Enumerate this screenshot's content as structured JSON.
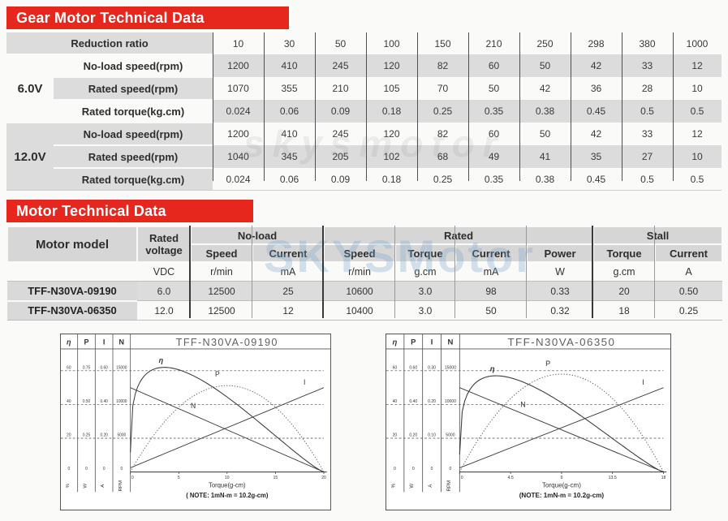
{
  "watermarks": {
    "gear": "skysmotor",
    "motor": "SKYSMotor"
  },
  "gear_table": {
    "title": "Gear Motor Technical Data",
    "header_label": "Reduction ratio",
    "ratios": [
      "10",
      "30",
      "50",
      "100",
      "150",
      "210",
      "250",
      "298",
      "380",
      "1000"
    ],
    "groups": [
      {
        "voltage": "6.0V",
        "rows": [
          {
            "label": "No-load speed(rpm)",
            "values": [
              "1200",
              "410",
              "245",
              "120",
              "82",
              "60",
              "50",
              "42",
              "33",
              "12"
            ]
          },
          {
            "label": "Rated speed(rpm)",
            "values": [
              "1070",
              "355",
              "210",
              "105",
              "70",
              "50",
              "42",
              "36",
              "28",
              "10"
            ]
          },
          {
            "label": "Rated torque(kg.cm)",
            "values": [
              "0.024",
              "0.06",
              "0.09",
              "0.18",
              "0.25",
              "0.35",
              "0.38",
              "0.45",
              "0.5",
              "0.5"
            ]
          }
        ]
      },
      {
        "voltage": "12.0V",
        "rows": [
          {
            "label": "No-load speed(rpm)",
            "values": [
              "1200",
              "410",
              "245",
              "120",
              "82",
              "60",
              "50",
              "42",
              "33",
              "12"
            ]
          },
          {
            "label": "Rated speed(rpm)",
            "values": [
              "1040",
              "345",
              "205",
              "102",
              "68",
              "49",
              "41",
              "35",
              "27",
              "10"
            ]
          },
          {
            "label": "Rated torque(kg.cm)",
            "values": [
              "0.024",
              "0.06",
              "0.09",
              "0.18",
              "0.25",
              "0.35",
              "0.38",
              "0.45",
              "0.5",
              "0.5"
            ]
          }
        ]
      }
    ]
  },
  "motor_table": {
    "title": "Motor Technical Data",
    "model_header": "Motor model",
    "voltage_header": "Rated voltage",
    "groups": [
      {
        "label": "No-load",
        "cols": [
          "Speed",
          "Current"
        ]
      },
      {
        "label": "Rated",
        "cols": [
          "Speed",
          "Torque",
          "Current",
          "Power"
        ]
      },
      {
        "label": "Stall",
        "cols": [
          "Torque",
          "Current"
        ]
      }
    ],
    "units": [
      "VDC",
      "r/min",
      "mA",
      "r/min",
      "g.cm",
      "mA",
      "W",
      "g.cm",
      "A"
    ],
    "rows": [
      {
        "model": "TFF-N30VA-09190",
        "values": [
          "6.0",
          "12500",
          "25",
          "10600",
          "3.0",
          "98",
          "0.33",
          "20",
          "0.50"
        ]
      },
      {
        "model": "TFF-N30VA-06350",
        "values": [
          "12.0",
          "12500",
          "12",
          "10400",
          "3.0",
          "50",
          "0.32",
          "18",
          "0.25"
        ]
      }
    ]
  },
  "chart_data": [
    {
      "type": "line",
      "title": "TFF-N30VA-09190",
      "xlabel": "Torque(g-cm)",
      "note": "( NOTE: 1mN-m = 10.2g-cm)",
      "x_max": 20,
      "x_ticks": [
        "0",
        "5",
        "10",
        "15",
        "20"
      ],
      "axes": [
        {
          "symbol": "η",
          "unit": "%",
          "ticks": [
            "60",
            "40",
            "20",
            "0"
          ]
        },
        {
          "symbol": "P",
          "unit": "W",
          "ticks": [
            "0.75",
            "0.50",
            "0.25",
            "0"
          ]
        },
        {
          "symbol": "I",
          "unit": "A",
          "ticks": [
            "0.60",
            "0.40",
            "0.20",
            "0"
          ]
        },
        {
          "symbol": "N",
          "unit": "RPM",
          "ticks": [
            "15000",
            "10000",
            "5000",
            "0"
          ]
        }
      ],
      "series": [
        {
          "name": "N",
          "axis": "N",
          "shape": "line",
          "points": [
            [
              0,
              12500
            ],
            [
              20,
              0
            ]
          ],
          "label": "N",
          "label_t": 6.5
        },
        {
          "name": "I",
          "axis": "I",
          "shape": "line",
          "points": [
            [
              0,
              0.025
            ],
            [
              20,
              0.5
            ]
          ],
          "label": "I",
          "label_t": 18.0
        },
        {
          "name": "P",
          "axis": "P",
          "shape": "parabola",
          "span": [
            0,
            20
          ],
          "peak": [
            10,
            0.64
          ],
          "dotted": true,
          "label": "P",
          "label_t": 9.0
        },
        {
          "name": "eta",
          "axis": "η",
          "shape": "efficiency",
          "span": [
            0,
            20
          ],
          "peak": [
            3.5,
            62
          ],
          "label": "η",
          "label_t": 3.4
        }
      ]
    },
    {
      "type": "line",
      "title": "TFF-N30VA-06350",
      "xlabel": "Torque(g-cm)",
      "note": "(NOTE: 1mN-m = 10.2g-cm)",
      "x_max": 18,
      "x_ticks": [
        "0",
        "4.5",
        "9",
        "13.5",
        "18"
      ],
      "axes": [
        {
          "symbol": "η",
          "unit": "%",
          "ticks": [
            "60",
            "40",
            "20",
            "0"
          ]
        },
        {
          "symbol": "P",
          "unit": "W",
          "ticks": [
            "0.60",
            "0.40",
            "0.20",
            "0"
          ]
        },
        {
          "symbol": "I",
          "unit": "A",
          "ticks": [
            "0.30",
            "0.20",
            "0.10",
            "0"
          ]
        },
        {
          "symbol": "N",
          "unit": "RPM",
          "ticks": [
            "15000",
            "10000",
            "5000",
            "0"
          ]
        }
      ],
      "series": [
        {
          "name": "N",
          "axis": "N",
          "shape": "line",
          "points": [
            [
              0,
              12500
            ],
            [
              18,
              0
            ]
          ],
          "label": "N",
          "label_t": 5.6
        },
        {
          "name": "I",
          "axis": "I",
          "shape": "line",
          "points": [
            [
              0,
              0.012
            ],
            [
              18,
              0.25
            ]
          ],
          "label": "I",
          "label_t": 16.2
        },
        {
          "name": "P",
          "axis": "P",
          "shape": "parabola",
          "span": [
            0,
            18
          ],
          "peak": [
            9,
            0.58
          ],
          "dotted": true,
          "label": "P",
          "label_t": 7.8
        },
        {
          "name": "eta",
          "axis": "η",
          "shape": "efficiency",
          "span": [
            0,
            18
          ],
          "peak": [
            3.2,
            57
          ],
          "label": "η",
          "label_t": 3.1
        }
      ]
    }
  ]
}
